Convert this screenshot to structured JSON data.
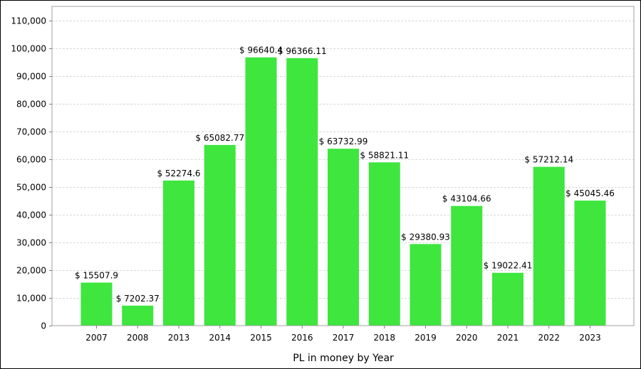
{
  "chart_data": {
    "type": "bar",
    "xlabel": "PL in money by Year",
    "ylabel": "",
    "ylim": [
      0,
      115000
    ],
    "yticks": [
      "0",
      "10,000",
      "20,000",
      "30,000",
      "40,000",
      "50,000",
      "60,000",
      "70,000",
      "80,000",
      "90,000",
      "100,000",
      "110,000"
    ],
    "ytick_values": [
      0,
      10000,
      20000,
      30000,
      40000,
      50000,
      60000,
      70000,
      80000,
      90000,
      100000,
      110000
    ],
    "grid": true,
    "categories": [
      "2007",
      "2008",
      "2013",
      "2014",
      "2015",
      "2016",
      "2017",
      "2018",
      "2019",
      "2020",
      "2021",
      "2022",
      "2023"
    ],
    "values": [
      15507.9,
      7202.37,
      52274.6,
      65082.77,
      96640.4,
      96366.11,
      63732.99,
      58821.11,
      29380.93,
      43104.66,
      19022.41,
      57212.14,
      45045.46
    ],
    "data_labels": [
      "$ 15507.9",
      "$ 7202.37",
      "$ 52274.6",
      "$ 65082.77",
      "$ 96640.4",
      "$ 96366.11",
      "$ 63732.99",
      "$ 58821.11",
      "$ 29380.93",
      "$ 43104.66",
      "$ 19022.41",
      "$ 57212.14",
      "$ 45045.46"
    ],
    "bar_color": "#3ee63e",
    "grid_color": "#d9d9d9"
  }
}
